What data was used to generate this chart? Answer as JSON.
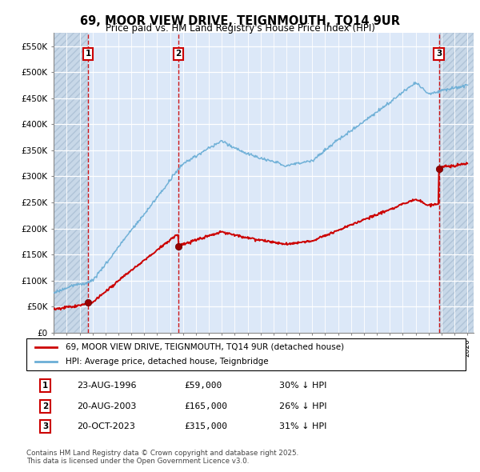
{
  "title": "69, MOOR VIEW DRIVE, TEIGNMOUTH, TQ14 9UR",
  "subtitle": "Price paid vs. HM Land Registry's House Price Index (HPI)",
  "ylabel_ticks": [
    "£0",
    "£50K",
    "£100K",
    "£150K",
    "£200K",
    "£250K",
    "£300K",
    "£350K",
    "£400K",
    "£450K",
    "£500K",
    "£550K"
  ],
  "ytick_vals": [
    0,
    50000,
    100000,
    150000,
    200000,
    250000,
    300000,
    350000,
    400000,
    450000,
    500000,
    550000
  ],
  "ylim": [
    0,
    575000
  ],
  "xlim_start": 1994.0,
  "xlim_end": 2026.5,
  "sale_dates": [
    1996.646,
    2003.646,
    2023.8
  ],
  "sale_prices": [
    59000,
    165000,
    315000
  ],
  "sale_labels": [
    "1",
    "2",
    "3"
  ],
  "legend_line1": "69, MOOR VIEW DRIVE, TEIGNMOUTH, TQ14 9UR (detached house)",
  "legend_line2": "HPI: Average price, detached house, Teignbridge",
  "table_rows": [
    [
      "1",
      "23-AUG-1996",
      "£59,000",
      "30% ↓ HPI"
    ],
    [
      "2",
      "20-AUG-2003",
      "£165,000",
      "26% ↓ HPI"
    ],
    [
      "3",
      "20-OCT-2023",
      "£315,000",
      "31% ↓ HPI"
    ]
  ],
  "footnote": "Contains HM Land Registry data © Crown copyright and database right 2025.\nThis data is licensed under the Open Government Licence v3.0.",
  "hpi_color": "#6baed6",
  "sale_color": "#cc0000",
  "background_color": "#dce8f5",
  "hatch_bg_color": "#c8d8ea",
  "span_color": "#d4e4f4"
}
